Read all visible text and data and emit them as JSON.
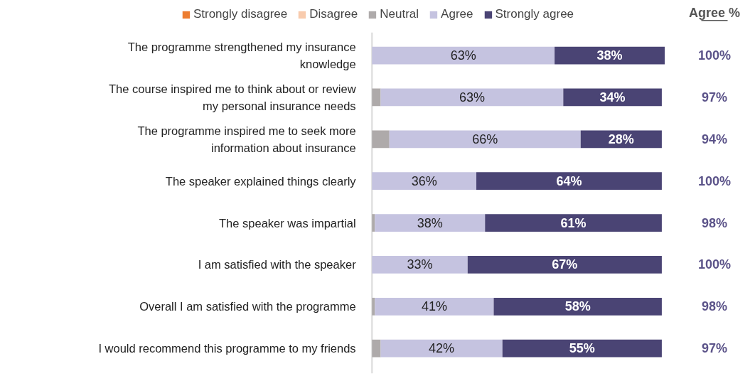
{
  "chart_data": {
    "type": "bar",
    "orientation": "horizontal",
    "stacked": true,
    "legend": "top",
    "grid": false,
    "tick_labels": "y",
    "categories": [
      "The programme strengthened my insurance knowledge",
      "The course inspired me to think about or review my personal insurance needs",
      "The programme inspired me to seek more information about insurance",
      "The speaker explained things clearly",
      "The speaker was impartial",
      "I am satisfied with the speaker",
      "Overall I am satisfied with the programme",
      "I would recommend this programme to my friends"
    ],
    "series": [
      {
        "name": "Strongly disagree",
        "color": "#ed7d31",
        "values": [
          0,
          0,
          0,
          0,
          0,
          0,
          0,
          0
        ]
      },
      {
        "name": "Disagree",
        "color": "#f8cbad",
        "values": [
          0,
          0,
          0,
          0,
          0,
          0,
          0,
          0
        ]
      },
      {
        "name": "Neutral",
        "color": "#aeaaaa",
        "values": [
          0,
          3,
          6,
          0,
          1,
          0,
          1,
          3
        ]
      },
      {
        "name": "Agree",
        "color": "#c5c3e0",
        "values": [
          63,
          63,
          66,
          36,
          38,
          33,
          41,
          42
        ],
        "value_labels": [
          "63%",
          "63%",
          "66%",
          "36%",
          "38%",
          "33%",
          "41%",
          "42%"
        ]
      },
      {
        "name": "Strongly agree",
        "color": "#4a4474",
        "values": [
          38,
          34,
          28,
          64,
          61,
          67,
          58,
          55
        ],
        "value_labels": [
          "38%",
          "34%",
          "28%",
          "64%",
          "61%",
          "67%",
          "58%",
          "55%"
        ]
      }
    ],
    "annotations": [
      "Agree %",
      "100%",
      "97%",
      "94%",
      "100%",
      "98%",
      "100%",
      "98%",
      "97%"
    ]
  }
}
